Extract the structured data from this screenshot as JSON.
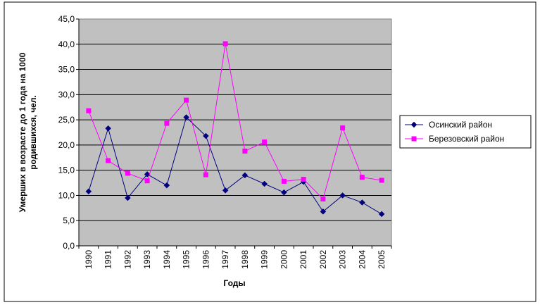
{
  "chart_data": {
    "type": "line",
    "xlabel": "Годы",
    "ylabel_line1": "Умерших в возрасте до 1 года на 1000",
    "ylabel_line2": "родившихся, чел.",
    "ylim": [
      0,
      45
    ],
    "y_ticks": [
      "0,0",
      "5,0",
      "10,0",
      "15,0",
      "20,0",
      "25,0",
      "30,0",
      "35,0",
      "40,0",
      "45,0"
    ],
    "categories": [
      "1990",
      "1991",
      "1992",
      "1993",
      "1994",
      "1995",
      "1996",
      "1997",
      "1998",
      "1999",
      "2000",
      "2001",
      "2002",
      "2003",
      "2004",
      "2005"
    ],
    "grid": true,
    "plot_background": "#c0c0c0",
    "legend_position": "right",
    "series": [
      {
        "name": "Осинский район",
        "color": "#000080",
        "marker": "diamond",
        "values": [
          10.8,
          23.3,
          9.5,
          14.2,
          12.0,
          25.5,
          21.8,
          11.0,
          14.0,
          12.3,
          10.6,
          12.7,
          6.8,
          10.0,
          8.6,
          6.3
        ]
      },
      {
        "name": "Березовский район",
        "color": "#ff00ff",
        "marker": "square",
        "values": [
          26.8,
          16.9,
          14.4,
          12.9,
          24.3,
          28.9,
          14.1,
          40.1,
          18.8,
          20.6,
          12.8,
          13.2,
          9.3,
          23.4,
          13.6,
          13.0
        ]
      }
    ]
  }
}
